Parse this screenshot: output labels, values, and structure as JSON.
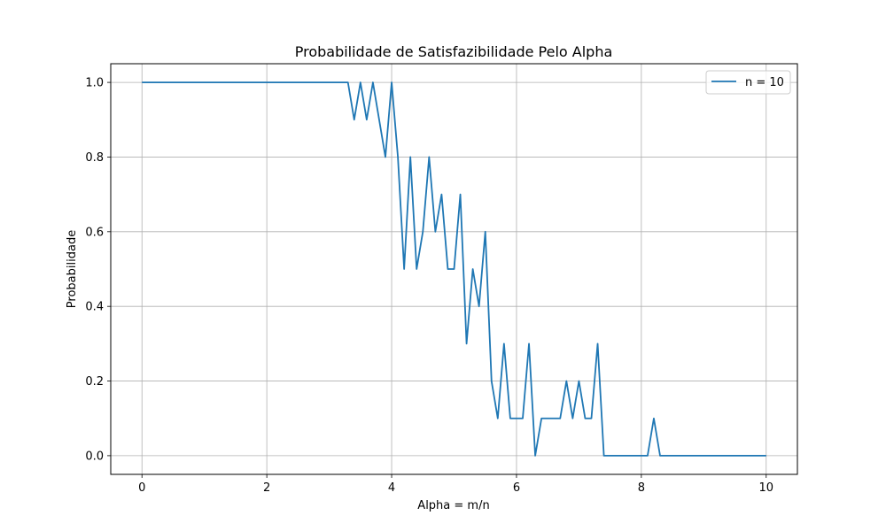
{
  "chart_data": {
    "type": "line",
    "title": "Probabilidade de Satisfazibilidade Pelo Alpha",
    "xlabel": "Alpha = m/n",
    "ylabel": "Probabilidade",
    "xlim": [
      -0.5,
      10.5
    ],
    "ylim": [
      -0.05,
      1.05
    ],
    "xticks": [
      0,
      2,
      4,
      6,
      8,
      10
    ],
    "yticks": [
      0.0,
      0.2,
      0.4,
      0.6,
      0.8,
      1.0
    ],
    "xtick_labels": [
      "0",
      "2",
      "4",
      "6",
      "8",
      "10"
    ],
    "ytick_labels": [
      "0.0",
      "0.2",
      "0.4",
      "0.6",
      "0.8",
      "1.0"
    ],
    "grid": true,
    "legend": "top-right",
    "series": [
      {
        "name": "n = 10",
        "color": "#1f77b4",
        "x": [
          0.0,
          3.3,
          3.4,
          3.5,
          3.6,
          3.7,
          3.8,
          3.9,
          4.0,
          4.1,
          4.2,
          4.3,
          4.4,
          4.5,
          4.6,
          4.7,
          4.8,
          4.9,
          5.0,
          5.1,
          5.2,
          5.3,
          5.4,
          5.5,
          5.6,
          5.7,
          5.8,
          5.9,
          6.0,
          6.1,
          6.2,
          6.3,
          6.4,
          6.5,
          6.6,
          6.7,
          6.8,
          6.9,
          7.0,
          7.1,
          7.2,
          7.3,
          7.4,
          7.5,
          8.1,
          8.2,
          8.3,
          10.0
        ],
        "y": [
          1.0,
          1.0,
          0.9,
          1.0,
          0.9,
          1.0,
          0.9,
          0.8,
          1.0,
          0.8,
          0.5,
          0.8,
          0.5,
          0.6,
          0.8,
          0.6,
          0.7,
          0.5,
          0.5,
          0.7,
          0.3,
          0.5,
          0.4,
          0.6,
          0.2,
          0.1,
          0.3,
          0.1,
          0.1,
          0.1,
          0.3,
          0.0,
          0.1,
          0.1,
          0.1,
          0.1,
          0.2,
          0.1,
          0.2,
          0.1,
          0.1,
          0.3,
          0.0,
          0.0,
          0.0,
          0.1,
          0.0,
          0.0
        ]
      }
    ]
  }
}
